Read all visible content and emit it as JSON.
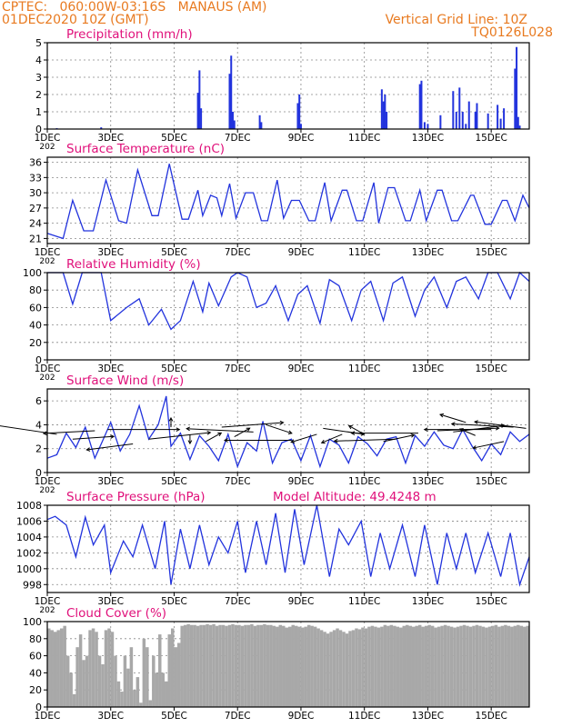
{
  "header": {
    "station": "CPTEC:   060:00W-03:16S   MANAUS (AM)",
    "run": "01DEC2020 10Z (GMT)",
    "grid_note": "Vertical Grid Line: 10Z",
    "code": "TQ0126L028"
  },
  "colors": {
    "header": "#e87a20",
    "title": "#e0107a",
    "series": "#2233dd",
    "cloud": "#a8a8a8",
    "axis": "#000000",
    "grid": "#888888"
  },
  "x_axis": {
    "start_day": 1,
    "end_day": 16.2,
    "ticks": [
      1,
      3,
      5,
      7,
      9,
      11,
      13,
      15
    ],
    "tick_labels": [
      "1DEC",
      "3DEC",
      "5DEC",
      "7DEC",
      "9DEC",
      "11DEC",
      "13DEC",
      "15DEC"
    ],
    "under_first_tick": "202"
  },
  "chart_data": [
    {
      "id": "precip",
      "type": "bar",
      "title": "Precipitation (mm/h)",
      "ylim": [
        0,
        5
      ],
      "yticks": [
        0,
        1,
        2,
        3,
        4,
        5
      ],
      "grid": true,
      "x": [
        1.3,
        2.7,
        5.75,
        5.8,
        5.85,
        6.75,
        6.8,
        6.85,
        6.9,
        7.7,
        7.75,
        8.9,
        8.95,
        9.0,
        11.55,
        11.6,
        11.65,
        11.7,
        12.75,
        12.8,
        12.9,
        13.0,
        13.4,
        13.8,
        13.9,
        14.0,
        14.1,
        14.2,
        14.3,
        14.5,
        14.55,
        14.9,
        15.2,
        15.3,
        15.4,
        15.75,
        15.8,
        15.85,
        15.9
      ],
      "values": [
        0.05,
        0.1,
        2.1,
        3.4,
        1.2,
        3.2,
        4.25,
        1.0,
        0.5,
        0.8,
        0.4,
        1.5,
        2.0,
        0.3,
        2.3,
        1.6,
        2.0,
        1.0,
        2.6,
        2.8,
        0.4,
        0.3,
        0.8,
        2.2,
        1.0,
        2.4,
        1.0,
        0.3,
        1.6,
        1.0,
        1.5,
        0.9,
        1.4,
        0.6,
        1.2,
        3.5,
        4.75,
        0.7,
        0.2
      ]
    },
    {
      "id": "temp",
      "type": "line",
      "title": "Surface Temperature (nC)",
      "ylim": [
        20,
        37
      ],
      "yticks": [
        21,
        24,
        27,
        30,
        33,
        36
      ],
      "grid": true,
      "x": [
        1.0,
        1.35,
        1.5,
        1.8,
        2.15,
        2.45,
        2.85,
        3.25,
        3.5,
        3.85,
        4.3,
        4.5,
        4.85,
        5.25,
        5.45,
        5.75,
        5.9,
        6.15,
        6.35,
        6.5,
        6.75,
        6.95,
        7.25,
        7.5,
        7.75,
        7.95,
        8.25,
        8.45,
        8.7,
        8.95,
        9.25,
        9.45,
        9.75,
        9.95,
        10.3,
        10.45,
        10.75,
        10.95,
        11.3,
        11.45,
        11.75,
        11.95,
        12.3,
        12.45,
        12.75,
        12.95,
        13.3,
        13.45,
        13.75,
        13.95,
        14.35,
        14.45,
        14.8,
        15.0,
        15.35,
        15.5,
        15.75,
        16.0,
        16.2
      ],
      "values": [
        22,
        21.3,
        21,
        28.5,
        22.5,
        22.5,
        32.5,
        24.5,
        24,
        34.5,
        25.5,
        25.5,
        35.7,
        24.8,
        24.8,
        30.5,
        25.5,
        29.5,
        29,
        25.5,
        31.8,
        25,
        30,
        30,
        24.5,
        24.5,
        32.5,
        25,
        28.5,
        28.5,
        24.5,
        24.5,
        32,
        24.5,
        30.5,
        30.5,
        24.5,
        24.5,
        32,
        24,
        31,
        31,
        24.5,
        24.5,
        30.5,
        24.5,
        30.5,
        30.5,
        24.5,
        24.5,
        29.5,
        29.5,
        23.8,
        23.8,
        28.5,
        28.5,
        24.5,
        29.5,
        27
      ]
    },
    {
      "id": "rh",
      "type": "line",
      "title": "Relative Humidity (%)",
      "ylim": [
        0,
        100
      ],
      "yticks": [
        0,
        20,
        40,
        60,
        80,
        100
      ],
      "grid": true,
      "x": [
        1.0,
        1.5,
        1.8,
        2.1,
        2.5,
        2.7,
        3.0,
        3.5,
        3.9,
        4.2,
        4.6,
        4.9,
        5.2,
        5.6,
        5.9,
        6.1,
        6.4,
        6.8,
        7.0,
        7.3,
        7.6,
        7.9,
        8.2,
        8.6,
        8.9,
        9.2,
        9.6,
        9.9,
        10.2,
        10.6,
        10.9,
        11.2,
        11.6,
        11.9,
        12.2,
        12.6,
        12.9,
        13.2,
        13.6,
        13.9,
        14.2,
        14.6,
        14.9,
        15.2,
        15.6,
        15.9,
        16.2
      ],
      "values": [
        100,
        100,
        64,
        100,
        100,
        100,
        45,
        60,
        70,
        40,
        58,
        35,
        45,
        90,
        55,
        88,
        62,
        95,
        100,
        95,
        60,
        65,
        85,
        45,
        75,
        85,
        42,
        92,
        85,
        45,
        80,
        90,
        45,
        88,
        95,
        50,
        80,
        95,
        60,
        90,
        95,
        70,
        100,
        100,
        70,
        100,
        90
      ]
    },
    {
      "id": "wind",
      "type": "line",
      "title": "Surface Wind (m/s)",
      "ylim": [
        0,
        7
      ],
      "yticks": [
        0,
        2,
        4,
        6
      ],
      "grid": true,
      "x": [
        1.0,
        1.3,
        1.6,
        1.9,
        2.2,
        2.5,
        2.8,
        3.0,
        3.3,
        3.6,
        3.9,
        4.2,
        4.5,
        4.75,
        4.9,
        5.2,
        5.5,
        5.8,
        6.1,
        6.4,
        6.7,
        7.0,
        7.3,
        7.6,
        7.8,
        8.1,
        8.4,
        8.7,
        9.0,
        9.3,
        9.6,
        9.9,
        10.2,
        10.5,
        10.8,
        11.1,
        11.4,
        11.7,
        12.0,
        12.3,
        12.6,
        12.9,
        13.2,
        13.5,
        13.8,
        14.1,
        14.4,
        14.7,
        15.0,
        15.3,
        15.6,
        15.9,
        16.2
      ],
      "values": [
        1.2,
        1.5,
        3.3,
        2.1,
        3.8,
        1.2,
        3.0,
        4.2,
        1.8,
        3.2,
        5.6,
        2.8,
        4.0,
        6.4,
        2.2,
        3.3,
        1.1,
        3.1,
        2.2,
        1.0,
        3.2,
        0.5,
        2.5,
        1.8,
        4.3,
        0.8,
        2.5,
        2.8,
        1.0,
        3.1,
        0.5,
        2.8,
        2.3,
        0.8,
        3.0,
        2.4,
        1.4,
        2.8,
        3.0,
        0.8,
        3.1,
        2.2,
        3.4,
        2.3,
        2.0,
        3.6,
        2.2,
        1.0,
        2.4,
        1.5,
        3.4,
        2.6,
        3.2
      ],
      "arrows": [
        {
          "x": 1.3,
          "y": 3.2,
          "u": -1.2,
          "v": 1.4
        },
        {
          "x": 1.8,
          "y": 2.8,
          "u": 0.8,
          "v": 0.4
        },
        {
          "x": 2.5,
          "y": 3.5,
          "u": -1.0,
          "v": -0.4
        },
        {
          "x": 2.9,
          "y": 3.6,
          "u": 1.4,
          "v": 0.0
        },
        {
          "x": 3.7,
          "y": 2.4,
          "u": -0.9,
          "v": -0.9
        },
        {
          "x": 4.2,
          "y": 2.8,
          "u": 1.2,
          "v": 1.0
        },
        {
          "x": 4.9,
          "y": 3.8,
          "u": 0.0,
          "v": 1.4
        },
        {
          "x": 5.5,
          "y": 3.2,
          "u": 0.0,
          "v": -1.4
        },
        {
          "x": 6.0,
          "y": 2.6,
          "u": 0.3,
          "v": 1.3
        },
        {
          "x": 6.5,
          "y": 3.8,
          "u": 1.2,
          "v": 0.7
        },
        {
          "x": 6.9,
          "y": 3.0,
          "u": 0.3,
          "v": 1.3
        },
        {
          "x": 7.5,
          "y": 3.4,
          "u": -1.3,
          "v": 0.5
        },
        {
          "x": 7.9,
          "y": 4.0,
          "u": 0.5,
          "v": -1.3
        },
        {
          "x": 8.7,
          "y": 2.7,
          "u": -1.3,
          "v": 0.0
        },
        {
          "x": 9.5,
          "y": 3.2,
          "u": -0.5,
          "v": -1.2
        },
        {
          "x": 9.7,
          "y": 3.7,
          "u": 0.8,
          "v": -0.9
        },
        {
          "x": 10.3,
          "y": 3.2,
          "u": -0.4,
          "v": -1.3
        },
        {
          "x": 11.0,
          "y": 3.2,
          "u": -0.3,
          "v": 1.3
        },
        {
          "x": 11.6,
          "y": 2.6,
          "u": 0.6,
          "v": 1.0
        },
        {
          "x": 12.0,
          "y": 2.8,
          "u": -1.2,
          "v": -0.3
        },
        {
          "x": 12.7,
          "y": 3.3,
          "u": -1.3,
          "v": 0.0
        },
        {
          "x": 13.3,
          "y": 3.5,
          "u": 1.2,
          "v": 0.4
        },
        {
          "x": 13.8,
          "y": 3.4,
          "u": 1.0,
          "v": 1.0
        },
        {
          "x": 14.2,
          "y": 4.2,
          "u": -0.5,
          "v": 1.2
        },
        {
          "x": 14.5,
          "y": 3.1,
          "u": -0.3,
          "v": 1.0
        },
        {
          "x": 15.0,
          "y": 3.6,
          "u": -1.3,
          "v": 0.0
        },
        {
          "x": 15.7,
          "y": 3.8,
          "u": -1.2,
          "v": 0.5
        },
        {
          "x": 16.1,
          "y": 3.7,
          "u": -1.0,
          "v": 1.0
        },
        {
          "x": 15.4,
          "y": 2.6,
          "u": -0.6,
          "v": -1.0
        }
      ]
    },
    {
      "id": "pressure",
      "type": "line",
      "title": "Surface Pressure (hPa)",
      "annotation": "Model Altitude: 49.4248  m",
      "ylim": [
        997,
        1008
      ],
      "yticks": [
        998,
        1000,
        1002,
        1004,
        1006,
        1008
      ],
      "grid": true,
      "x": [
        1.0,
        1.25,
        1.6,
        1.9,
        2.2,
        2.45,
        2.8,
        3.0,
        3.4,
        3.7,
        4.0,
        4.4,
        4.7,
        4.9,
        5.2,
        5.5,
        5.8,
        6.1,
        6.4,
        6.7,
        7.0,
        7.25,
        7.6,
        7.9,
        8.2,
        8.5,
        8.8,
        9.1,
        9.5,
        9.9,
        10.2,
        10.5,
        10.9,
        11.2,
        11.5,
        11.8,
        12.2,
        12.6,
        12.9,
        13.3,
        13.6,
        13.9,
        14.2,
        14.5,
        14.9,
        15.3,
        15.6,
        15.9,
        16.2
      ],
      "values": [
        1006.2,
        1006.6,
        1005.5,
        1001.5,
        1006.5,
        1003.0,
        1005.5,
        999.5,
        1003.5,
        1001.5,
        1005.5,
        1000.0,
        1006.0,
        998.0,
        1005.0,
        1000.0,
        1005.5,
        1000.5,
        1004.0,
        1002.0,
        1006.0,
        999.5,
        1006.0,
        1000.5,
        1007.0,
        999.5,
        1007.5,
        1000.5,
        1008.0,
        999.0,
        1005.0,
        1003.0,
        1006.0,
        999.0,
        1004.5,
        1000.0,
        1005.5,
        999.0,
        1005.5,
        998.0,
        1004.5,
        1000.0,
        1004.5,
        999.5,
        1004.5,
        999.0,
        1004.5,
        998.0,
        1001.5
      ]
    },
    {
      "id": "cloud",
      "type": "bar",
      "title": "Cloud Cover (%)",
      "ylim": [
        0,
        100
      ],
      "yticks": [
        0,
        20,
        40,
        60,
        80,
        100
      ],
      "grid": true,
      "x": [
        1.0,
        1.1,
        1.2,
        1.3,
        1.4,
        1.5,
        1.6,
        1.7,
        1.8,
        1.9,
        2.0,
        2.1,
        2.2,
        2.3,
        2.4,
        2.5,
        2.6,
        2.7,
        2.8,
        2.9,
        3.0,
        3.1,
        3.2,
        3.3,
        3.4,
        3.5,
        3.6,
        3.7,
        3.8,
        3.9,
        4.0,
        4.1,
        4.2,
        4.3,
        4.4,
        4.5,
        4.6,
        4.7,
        4.8,
        4.9,
        5.0,
        5.1,
        5.2,
        5.3,
        5.4,
        5.5,
        5.6,
        5.7,
        5.8,
        5.9,
        6.0,
        6.1,
        6.2,
        6.3,
        6.4,
        6.5,
        6.6,
        6.7,
        6.8,
        6.9,
        7.0,
        7.1,
        7.2,
        7.3,
        7.4,
        7.5,
        7.6,
        7.7,
        7.8,
        7.9,
        8.0,
        8.1,
        8.2,
        8.3,
        8.4,
        8.5,
        8.6,
        8.7,
        8.8,
        8.9,
        9.0,
        9.1,
        9.2,
        9.3,
        9.4,
        9.5,
        9.6,
        9.7,
        9.8,
        9.9,
        10.0,
        10.1,
        10.2,
        10.3,
        10.4,
        10.5,
        10.6,
        10.7,
        10.8,
        10.9,
        11.0,
        11.1,
        11.2,
        11.3,
        11.4,
        11.5,
        11.6,
        11.7,
        11.8,
        11.9,
        12.0,
        12.1,
        12.2,
        12.3,
        12.4,
        12.5,
        12.6,
        12.7,
        12.8,
        12.9,
        13.0,
        13.1,
        13.2,
        13.3,
        13.4,
        13.5,
        13.6,
        13.7,
        13.8,
        13.9,
        14.0,
        14.1,
        14.2,
        14.3,
        14.4,
        14.5,
        14.6,
        14.7,
        14.8,
        14.9,
        15.0,
        15.1,
        15.2,
        15.3,
        15.4,
        15.5,
        15.6,
        15.7,
        15.8,
        15.9,
        16.0,
        16.1
      ],
      "values": [
        92,
        90,
        88,
        90,
        92,
        95,
        60,
        40,
        15,
        70,
        85,
        55,
        60,
        90,
        92,
        88,
        60,
        50,
        90,
        92,
        88,
        60,
        30,
        18,
        60,
        45,
        70,
        20,
        35,
        5,
        80,
        70,
        8,
        60,
        40,
        85,
        40,
        30,
        85,
        92,
        70,
        75,
        95,
        96,
        97,
        96,
        96,
        95,
        96,
        96,
        97,
        96,
        97,
        95,
        96,
        96,
        95,
        96,
        97,
        96,
        96,
        95,
        96,
        96,
        97,
        95,
        96,
        96,
        97,
        96,
        96,
        95,
        94,
        96,
        95,
        93,
        94,
        96,
        95,
        94,
        93,
        94,
        96,
        95,
        94,
        92,
        90,
        88,
        86,
        88,
        90,
        92,
        90,
        88,
        86,
        89,
        90,
        92,
        91,
        93,
        92,
        94,
        95,
        94,
        93,
        94,
        96,
        95,
        96,
        95,
        94,
        93,
        95,
        96,
        95,
        94,
        95,
        96,
        94,
        95,
        96,
        95,
        93,
        94,
        95,
        96,
        95,
        94,
        93,
        94,
        95,
        96,
        95,
        94,
        95,
        96,
        95,
        94,
        93,
        94,
        95,
        96,
        94,
        95,
        96,
        95,
        94,
        95,
        96,
        95,
        94,
        95
      ]
    }
  ]
}
